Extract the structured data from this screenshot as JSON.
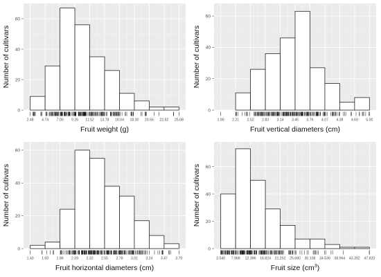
{
  "chart_data": [
    {
      "type": "bar",
      "xlabel": "Fruit weight (g)",
      "ylabel": "Number of cultivars",
      "ylim": [
        0,
        70
      ],
      "yticks": [
        0,
        20,
        40,
        60
      ],
      "tick_labels": [
        "2.48",
        "4.74",
        "7.00",
        "9.26",
        "11.52",
        "13.78",
        "16.04",
        "18.30",
        "20.56",
        "22.82",
        "25.08"
      ],
      "bin_edges": [
        2.48,
        4.74,
        7.0,
        9.26,
        11.52,
        13.78,
        16.04,
        18.3,
        20.56,
        22.82,
        25.08
      ],
      "values": [
        9,
        29,
        67,
        56,
        35,
        26,
        11,
        6,
        2,
        2
      ],
      "rug": true,
      "grid": true
    },
    {
      "type": "bar",
      "xlabel": "Fruit vertical diameters (cm)",
      "ylabel": "Number of cultivars",
      "ylim": [
        0,
        68
      ],
      "yticks": [
        0,
        20,
        40,
        60
      ],
      "tick_labels": [
        "1.90",
        "2.21",
        "2.52",
        "2.83",
        "3.14",
        "3.45",
        "3.76",
        "4.07",
        "4.38",
        "4.69",
        "5.00"
      ],
      "bin_edges": [
        1.9,
        2.21,
        2.52,
        2.83,
        3.14,
        3.45,
        3.76,
        4.07,
        4.38,
        4.69,
        5.0
      ],
      "values": [
        0,
        11,
        26,
        36,
        46,
        63,
        27,
        17,
        5,
        8
      ],
      "rug": true,
      "grid": true
    },
    {
      "type": "bar",
      "xlabel": "Fruit horizontal diameters (cm)",
      "ylabel": "Number of cultivars",
      "ylim": [
        0,
        65
      ],
      "yticks": [
        0,
        20,
        40,
        60
      ],
      "tick_labels": [
        "1.40",
        "1.63",
        "1.86",
        "2.09",
        "2.32",
        "2.55",
        "2.78",
        "3.01",
        "3.24",
        "3.47",
        "3.70"
      ],
      "bin_edges": [
        1.4,
        1.63,
        1.86,
        2.09,
        2.32,
        2.55,
        2.78,
        3.01,
        3.24,
        3.47,
        3.7
      ],
      "values": [
        2,
        4,
        24,
        60,
        55,
        38,
        32,
        17,
        8,
        3
      ],
      "rug": true,
      "grid": true
    },
    {
      "type": "bar",
      "xlabel": "Fruit size (cm",
      "xlabel_sup": "3",
      "xlabel_end": ")",
      "ylabel": "Number of cultivars",
      "ylim": [
        0,
        78
      ],
      "yticks": [
        0,
        20,
        40,
        60
      ],
      "tick_labels": [
        "3.540",
        "7.968",
        "12.396",
        "16.824",
        "21.252",
        "25.680",
        "30.108",
        "34.536",
        "38.964",
        "43.392",
        "47.820"
      ],
      "bin_edges": [
        3.54,
        7.968,
        12.396,
        16.824,
        21.252,
        25.68,
        30.108,
        34.536,
        38.964,
        43.392,
        47.82
      ],
      "values": [
        40,
        73,
        50,
        29,
        17,
        7,
        7,
        3,
        1,
        1
      ],
      "rug": true,
      "grid": true
    }
  ]
}
